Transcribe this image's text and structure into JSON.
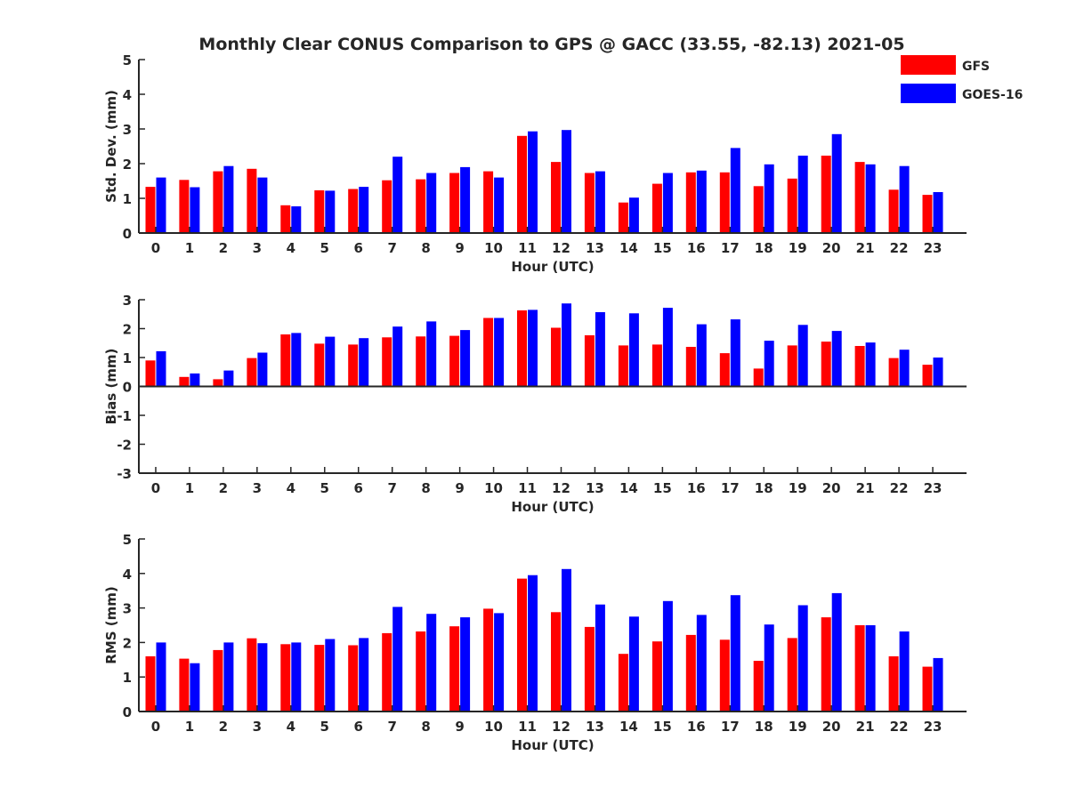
{
  "title": "Monthly Clear CONUS Comparison to GPS @ GACC (33.55, -82.13) 2021-05",
  "colors": {
    "gfs": "#ff0000",
    "goes": "#0000ff",
    "axis": "#262626"
  },
  "legend": {
    "entries": [
      "GFS",
      "GOES-16"
    ],
    "placement": "top-right"
  },
  "chart_data": [
    {
      "type": "bar",
      "id": "std",
      "xlabel": "Hour (UTC)",
      "ylabel": "Std. Dev. (mm)",
      "ylim": [
        0,
        5
      ],
      "yticks": [
        0,
        1,
        2,
        3,
        4,
        5
      ],
      "categories": [
        "0",
        "1",
        "2",
        "3",
        "4",
        "5",
        "6",
        "7",
        "8",
        "9",
        "10",
        "11",
        "12",
        "13",
        "14",
        "15",
        "16",
        "17",
        "18",
        "19",
        "20",
        "21",
        "22",
        "23"
      ],
      "series": [
        {
          "name": "GFS",
          "values": [
            1.33,
            1.53,
            1.78,
            1.85,
            0.8,
            1.23,
            1.27,
            1.52,
            1.55,
            1.73,
            1.78,
            2.8,
            2.05,
            1.73,
            0.88,
            1.42,
            1.75,
            1.75,
            1.35,
            1.57,
            2.23,
            2.05,
            1.25,
            1.1
          ]
        },
        {
          "name": "GOES-16",
          "values": [
            1.6,
            1.32,
            1.93,
            1.6,
            0.77,
            1.22,
            1.33,
            2.2,
            1.73,
            1.9,
            1.6,
            2.93,
            2.97,
            1.78,
            1.02,
            1.73,
            1.8,
            2.45,
            1.98,
            2.23,
            2.85,
            1.98,
            1.93,
            1.18
          ]
        }
      ]
    },
    {
      "type": "bar",
      "id": "bias",
      "xlabel": "Hour (UTC)",
      "ylabel": "Bias (mm)",
      "ylim": [
        -3,
        3
      ],
      "yticks": [
        -3,
        -2,
        -1,
        0,
        1,
        2,
        3
      ],
      "categories": [
        "0",
        "1",
        "2",
        "3",
        "4",
        "5",
        "6",
        "7",
        "8",
        "9",
        "10",
        "11",
        "12",
        "13",
        "14",
        "15",
        "16",
        "17",
        "18",
        "19",
        "20",
        "21",
        "22",
        "23"
      ],
      "series": [
        {
          "name": "GFS",
          "values": [
            0.9,
            0.33,
            0.25,
            0.98,
            1.8,
            1.48,
            1.45,
            1.7,
            1.73,
            1.75,
            2.37,
            2.63,
            2.03,
            1.77,
            1.42,
            1.45,
            1.37,
            1.15,
            0.62,
            1.42,
            1.55,
            1.4,
            0.98,
            0.75
          ]
        },
        {
          "name": "GOES-16",
          "values": [
            1.22,
            0.45,
            0.55,
            1.17,
            1.85,
            1.72,
            1.67,
            2.07,
            2.25,
            1.95,
            2.37,
            2.65,
            2.87,
            2.57,
            2.53,
            2.72,
            2.15,
            2.32,
            1.58,
            2.13,
            1.92,
            1.52,
            1.27,
            1.0
          ]
        }
      ]
    },
    {
      "type": "bar",
      "id": "rms",
      "xlabel": "Hour (UTC)",
      "ylabel": "RMS (mm)",
      "ylim": [
        0,
        5
      ],
      "yticks": [
        0,
        1,
        2,
        3,
        4,
        5
      ],
      "categories": [
        "0",
        "1",
        "2",
        "3",
        "4",
        "5",
        "6",
        "7",
        "8",
        "9",
        "10",
        "11",
        "12",
        "13",
        "14",
        "15",
        "16",
        "17",
        "18",
        "19",
        "20",
        "21",
        "22",
        "23"
      ],
      "series": [
        {
          "name": "GFS",
          "values": [
            1.6,
            1.53,
            1.78,
            2.12,
            1.95,
            1.93,
            1.92,
            2.27,
            2.32,
            2.47,
            2.98,
            3.85,
            2.88,
            2.45,
            1.67,
            2.03,
            2.22,
            2.08,
            1.47,
            2.13,
            2.73,
            2.5,
            1.6,
            1.3
          ]
        },
        {
          "name": "GOES-16",
          "values": [
            2.0,
            1.4,
            2.0,
            1.98,
            2.0,
            2.1,
            2.13,
            3.03,
            2.83,
            2.73,
            2.85,
            3.95,
            4.13,
            3.1,
            2.75,
            3.2,
            2.8,
            3.37,
            2.52,
            3.08,
            3.43,
            2.5,
            2.32,
            1.55
          ]
        }
      ]
    }
  ]
}
